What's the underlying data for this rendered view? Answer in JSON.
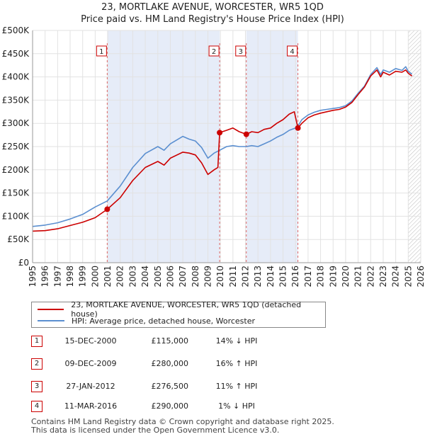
{
  "title": "23, MORTLAKE AVENUE, WORCESTER, WR5 1QD",
  "subtitle": "Price paid vs. HM Land Registry's House Price Index (HPI)",
  "chart_data": {
    "type": "line",
    "title": "23, MORTLAKE AVENUE, WORCESTER, WR5 1QD",
    "subtitle": "Price paid vs. HM Land Registry's House Price Index (HPI)",
    "xlim": [
      1995,
      2026
    ],
    "ylim": [
      0,
      500000
    ],
    "x_ticks": [
      "1995",
      "1996",
      "1997",
      "1998",
      "1999",
      "2000",
      "2001",
      "2002",
      "2003",
      "2004",
      "2005",
      "2006",
      "2007",
      "2008",
      "2009",
      "2010",
      "2011",
      "2012",
      "2013",
      "2014",
      "2015",
      "2016",
      "2017",
      "2018",
      "2019",
      "2020",
      "2021",
      "2022",
      "2023",
      "2024",
      "2025",
      "2026"
    ],
    "y_ticks": [
      {
        "value": 0,
        "label": "£0"
      },
      {
        "value": 50000,
        "label": "£50K"
      },
      {
        "value": 100000,
        "label": "£100K"
      },
      {
        "value": 150000,
        "label": "£150K"
      },
      {
        "value": 200000,
        "label": "£200K"
      },
      {
        "value": 250000,
        "label": "£250K"
      },
      {
        "value": 300000,
        "label": "£300K"
      },
      {
        "value": 350000,
        "label": "£350K"
      },
      {
        "value": 400000,
        "label": "£400K"
      },
      {
        "value": 450000,
        "label": "£450K"
      },
      {
        "value": 500000,
        "label": "£500K"
      }
    ],
    "shaded_ranges": [
      [
        2000.96,
        2009.94
      ],
      [
        2012.07,
        2016.19
      ]
    ],
    "hatched_from": 2025.0,
    "series": [
      {
        "name": "23, MORTLAKE AVENUE, WORCESTER, WR5 1QD (detached house)",
        "color": "#cc0000",
        "points": [
          [
            1995.0,
            68000
          ],
          [
            1996.0,
            69000
          ],
          [
            1997.0,
            73000
          ],
          [
            1998.0,
            80000
          ],
          [
            1999.0,
            87000
          ],
          [
            2000.0,
            97000
          ],
          [
            2000.96,
            115000
          ],
          [
            2002.0,
            140000
          ],
          [
            2003.0,
            177000
          ],
          [
            2004.0,
            205000
          ],
          [
            2005.0,
            218000
          ],
          [
            2005.5,
            210000
          ],
          [
            2006.0,
            225000
          ],
          [
            2007.0,
            238000
          ],
          [
            2007.5,
            236000
          ],
          [
            2008.0,
            232000
          ],
          [
            2008.5,
            215000
          ],
          [
            2009.0,
            190000
          ],
          [
            2009.5,
            200000
          ],
          [
            2009.8,
            205000
          ],
          [
            2009.94,
            280000
          ],
          [
            2010.5,
            285000
          ],
          [
            2011.0,
            290000
          ],
          [
            2011.5,
            282000
          ],
          [
            2012.07,
            276500
          ],
          [
            2012.5,
            282000
          ],
          [
            2013.0,
            280000
          ],
          [
            2013.5,
            287000
          ],
          [
            2014.0,
            290000
          ],
          [
            2014.5,
            300000
          ],
          [
            2015.0,
            308000
          ],
          [
            2015.5,
            320000
          ],
          [
            2015.9,
            325000
          ],
          [
            2016.19,
            290000
          ],
          [
            2016.5,
            300000
          ],
          [
            2017.0,
            312000
          ],
          [
            2017.5,
            318000
          ],
          [
            2018.0,
            322000
          ],
          [
            2018.5,
            325000
          ],
          [
            2019.0,
            328000
          ],
          [
            2019.5,
            330000
          ],
          [
            2020.0,
            335000
          ],
          [
            2020.5,
            345000
          ],
          [
            2021.0,
            362000
          ],
          [
            2021.5,
            378000
          ],
          [
            2022.0,
            402000
          ],
          [
            2022.5,
            415000
          ],
          [
            2022.8,
            400000
          ],
          [
            2023.0,
            410000
          ],
          [
            2023.5,
            404000
          ],
          [
            2024.0,
            412000
          ],
          [
            2024.5,
            410000
          ],
          [
            2024.8,
            415000
          ],
          [
            2025.0,
            408000
          ],
          [
            2025.3,
            402000
          ]
        ]
      },
      {
        "name": "HPI: Average price, detached house, Worcester",
        "color": "#5b8fd0",
        "points": [
          [
            1995.0,
            78000
          ],
          [
            1996.0,
            81000
          ],
          [
            1997.0,
            86000
          ],
          [
            1998.0,
            94000
          ],
          [
            1999.0,
            104000
          ],
          [
            2000.0,
            120000
          ],
          [
            2000.96,
            133000
          ],
          [
            2002.0,
            165000
          ],
          [
            2003.0,
            205000
          ],
          [
            2004.0,
            235000
          ],
          [
            2005.0,
            250000
          ],
          [
            2005.5,
            242000
          ],
          [
            2006.0,
            256000
          ],
          [
            2007.0,
            272000
          ],
          [
            2007.5,
            266000
          ],
          [
            2008.0,
            262000
          ],
          [
            2008.5,
            248000
          ],
          [
            2009.0,
            225000
          ],
          [
            2009.5,
            236000
          ],
          [
            2009.94,
            242000
          ],
          [
            2010.5,
            250000
          ],
          [
            2011.0,
            252000
          ],
          [
            2011.5,
            250000
          ],
          [
            2012.07,
            250000
          ],
          [
            2012.5,
            252000
          ],
          [
            2013.0,
            250000
          ],
          [
            2013.5,
            256000
          ],
          [
            2014.0,
            262000
          ],
          [
            2014.5,
            270000
          ],
          [
            2015.0,
            276000
          ],
          [
            2015.5,
            285000
          ],
          [
            2016.0,
            290000
          ],
          [
            2016.19,
            294000
          ],
          [
            2016.5,
            308000
          ],
          [
            2017.0,
            318000
          ],
          [
            2017.5,
            324000
          ],
          [
            2018.0,
            328000
          ],
          [
            2018.5,
            330000
          ],
          [
            2019.0,
            332000
          ],
          [
            2019.5,
            334000
          ],
          [
            2020.0,
            338000
          ],
          [
            2020.5,
            348000
          ],
          [
            2021.0,
            365000
          ],
          [
            2021.5,
            380000
          ],
          [
            2022.0,
            405000
          ],
          [
            2022.5,
            420000
          ],
          [
            2022.8,
            405000
          ],
          [
            2023.0,
            415000
          ],
          [
            2023.5,
            410000
          ],
          [
            2024.0,
            418000
          ],
          [
            2024.5,
            414000
          ],
          [
            2024.8,
            422000
          ],
          [
            2025.0,
            412000
          ],
          [
            2025.3,
            406000
          ]
        ]
      }
    ],
    "markers": [
      {
        "label": "1",
        "x": 2000.96,
        "y": 115000
      },
      {
        "label": "2",
        "x": 2009.94,
        "y": 280000
      },
      {
        "label": "3",
        "x": 2012.07,
        "y": 276500
      },
      {
        "label": "4",
        "x": 2016.19,
        "y": 290000
      }
    ]
  },
  "legend": {
    "property": "23, MORTLAKE AVENUE, WORCESTER, WR5 1QD (detached house)",
    "hpi": "HPI: Average price, detached house, Worcester"
  },
  "transactions": [
    {
      "num": "1",
      "date": "15-DEC-2000",
      "price": "£115,000",
      "hpi": "14% ↓ HPI"
    },
    {
      "num": "2",
      "date": "09-DEC-2009",
      "price": "£280,000",
      "hpi": "16% ↑ HPI"
    },
    {
      "num": "3",
      "date": "27-JAN-2012",
      "price": "£276,500",
      "hpi": "11% ↑ HPI"
    },
    {
      "num": "4",
      "date": "11-MAR-2016",
      "price": "£290,000",
      "hpi": "1% ↓ HPI"
    }
  ],
  "footer": {
    "line1": "Contains HM Land Registry data © Crown copyright and database right 2025.",
    "line2": "This data is licensed under the Open Government Licence v3.0."
  }
}
